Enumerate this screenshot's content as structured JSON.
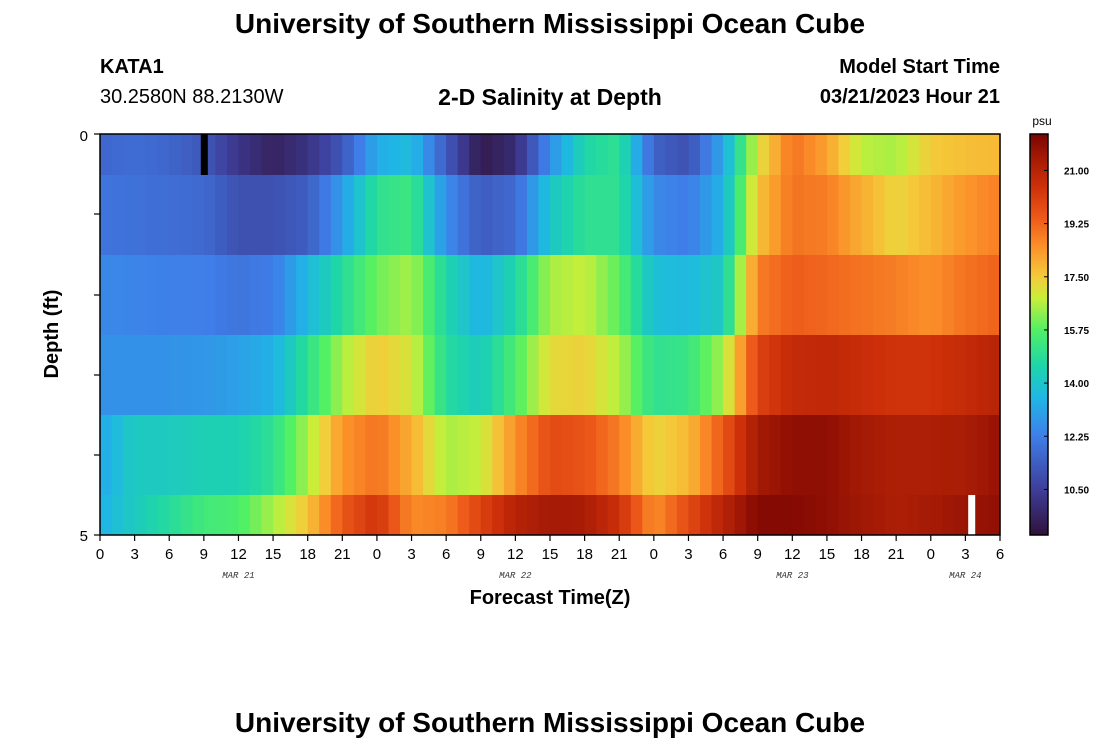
{
  "header": {
    "title": "University of Southern Mississippi Ocean Cube",
    "station_id": "KATA1",
    "coords": "30.2580N  88.2130W",
    "subtitle": "2-D Salinity at Depth",
    "model_start_label": "Model Start Time",
    "model_start_value": "03/21/2023 Hour 21"
  },
  "footer": {
    "title": "University of Southern Mississippi Ocean Cube"
  },
  "chart_data": {
    "type": "heatmap",
    "title": "2-D Salinity at Depth",
    "xlabel": "Forecast Time(Z)",
    "ylabel": "Depth (ft)",
    "x_start_hour": 0,
    "x_end_hour": 78,
    "x_tick_labels": [
      "0",
      "3",
      "6",
      "9",
      "12",
      "15",
      "18",
      "21",
      "0",
      "3",
      "6",
      "9",
      "12",
      "15",
      "18",
      "21",
      "0",
      "3",
      "6",
      "9",
      "12",
      "15",
      "18",
      "21",
      "0",
      "3",
      "6"
    ],
    "date_labels": [
      {
        "label": "MAR 21",
        "hour": 12
      },
      {
        "label": "MAR 22",
        "hour": 36
      },
      {
        "label": "MAR 23",
        "hour": 60
      },
      {
        "label": "MAR 24",
        "hour": 75
      }
    ],
    "ylim": [
      0,
      5
    ],
    "y_tick_labels": [
      "0",
      "5"
    ],
    "colorbar": {
      "unit": "psu",
      "min": 9.0,
      "max": 22.2,
      "tick_labels": [
        "21.00",
        "19.25",
        "17.50",
        "15.75",
        "14.00",
        "12.25",
        "10.50"
      ],
      "tick_values": [
        21.0,
        19.25,
        17.5,
        15.75,
        14.0,
        12.25,
        10.5
      ]
    },
    "key_hours": [
      0,
      3,
      6,
      9,
      12,
      15,
      18,
      21,
      24,
      27,
      30,
      33,
      36,
      39,
      42,
      45,
      48,
      51,
      54,
      57,
      60,
      63,
      66,
      69,
      72,
      75,
      78
    ],
    "layers": [
      {
        "depth": "0-0.5 ft",
        "values": [
          11.6,
          11.8,
          11.6,
          11.2,
          10.2,
          9.6,
          10.1,
          11.2,
          13.3,
          13.7,
          11.3,
          9.3,
          9.9,
          12.6,
          14.6,
          15.0,
          11.5,
          11.0,
          13.2,
          17.0,
          19.0,
          18.2,
          16.7,
          16.5,
          17.5,
          17.7,
          17.8
        ]
      },
      {
        "depth": "0.5-1.5 ft",
        "values": [
          12.0,
          11.9,
          11.8,
          11.7,
          11.0,
          11.0,
          11.4,
          12.9,
          15.0,
          15.3,
          12.6,
          11.3,
          11.7,
          14.0,
          15.0,
          15.0,
          12.5,
          12.2,
          13.5,
          17.6,
          19.0,
          18.8,
          18.0,
          17.3,
          17.8,
          18.4,
          18.8
        ]
      },
      {
        "depth": "1.5-2.5 ft",
        "values": [
          12.5,
          12.4,
          12.3,
          12.3,
          12.0,
          12.2,
          13.6,
          14.8,
          16.0,
          16.5,
          14.6,
          13.4,
          14.6,
          16.5,
          16.8,
          15.8,
          13.8,
          13.6,
          14.2,
          18.8,
          19.4,
          19.2,
          19.0,
          18.8,
          18.5,
          19.0,
          19.3
        ]
      },
      {
        "depth": "2.5-3.5 ft",
        "values": [
          12.7,
          12.7,
          12.7,
          12.8,
          13.0,
          13.4,
          15.0,
          16.5,
          17.5,
          17.0,
          14.8,
          14.2,
          15.6,
          17.2,
          17.4,
          16.6,
          15.0,
          15.2,
          16.5,
          20.0,
          20.7,
          20.8,
          20.6,
          20.4,
          20.4,
          20.7,
          21.0
        ]
      },
      {
        "depth": "3.5-4.5 ft",
        "values": [
          13.2,
          14.2,
          14.2,
          14.4,
          14.4,
          15.0,
          16.5,
          18.4,
          19.0,
          18.0,
          16.5,
          16.8,
          18.5,
          19.8,
          19.6,
          18.8,
          17.3,
          17.8,
          19.5,
          21.4,
          21.8,
          21.8,
          21.4,
          21.2,
          21.2,
          21.3,
          21.7
        ]
      },
      {
        "depth": "4.5-5 ft",
        "values": [
          13.4,
          14.2,
          14.8,
          15.4,
          15.6,
          16.5,
          17.6,
          19.5,
          20.4,
          18.6,
          18.8,
          20.0,
          21.0,
          21.4,
          21.3,
          20.5,
          18.5,
          19.8,
          21.0,
          22.0,
          22.0,
          21.8,
          21.5,
          21.2,
          21.4,
          21.6,
          21.8
        ]
      }
    ],
    "colormap_stops": [
      {
        "value": 9.0,
        "color": "#30123b"
      },
      {
        "value": 10.5,
        "color": "#3e3e9a"
      },
      {
        "value": 12.25,
        "color": "#3f7ee8"
      },
      {
        "value": 13.5,
        "color": "#1fb6e6"
      },
      {
        "value": 14.6,
        "color": "#1ed6a8"
      },
      {
        "value": 15.75,
        "color": "#52f065"
      },
      {
        "value": 16.8,
        "color": "#c9ee3a"
      },
      {
        "value": 17.5,
        "color": "#f4cb3a"
      },
      {
        "value": 18.5,
        "color": "#fb9029"
      },
      {
        "value": 19.4,
        "color": "#ee5b1a"
      },
      {
        "value": 20.5,
        "color": "#cc2f09"
      },
      {
        "value": 21.5,
        "color": "#a01805"
      },
      {
        "value": 22.2,
        "color": "#7a0403"
      }
    ],
    "markers": [
      {
        "hour": 9.0,
        "layer": 0,
        "color": "#000000"
      },
      {
        "hour": 75.5,
        "layer": 5,
        "color": "#ffffff"
      }
    ]
  }
}
